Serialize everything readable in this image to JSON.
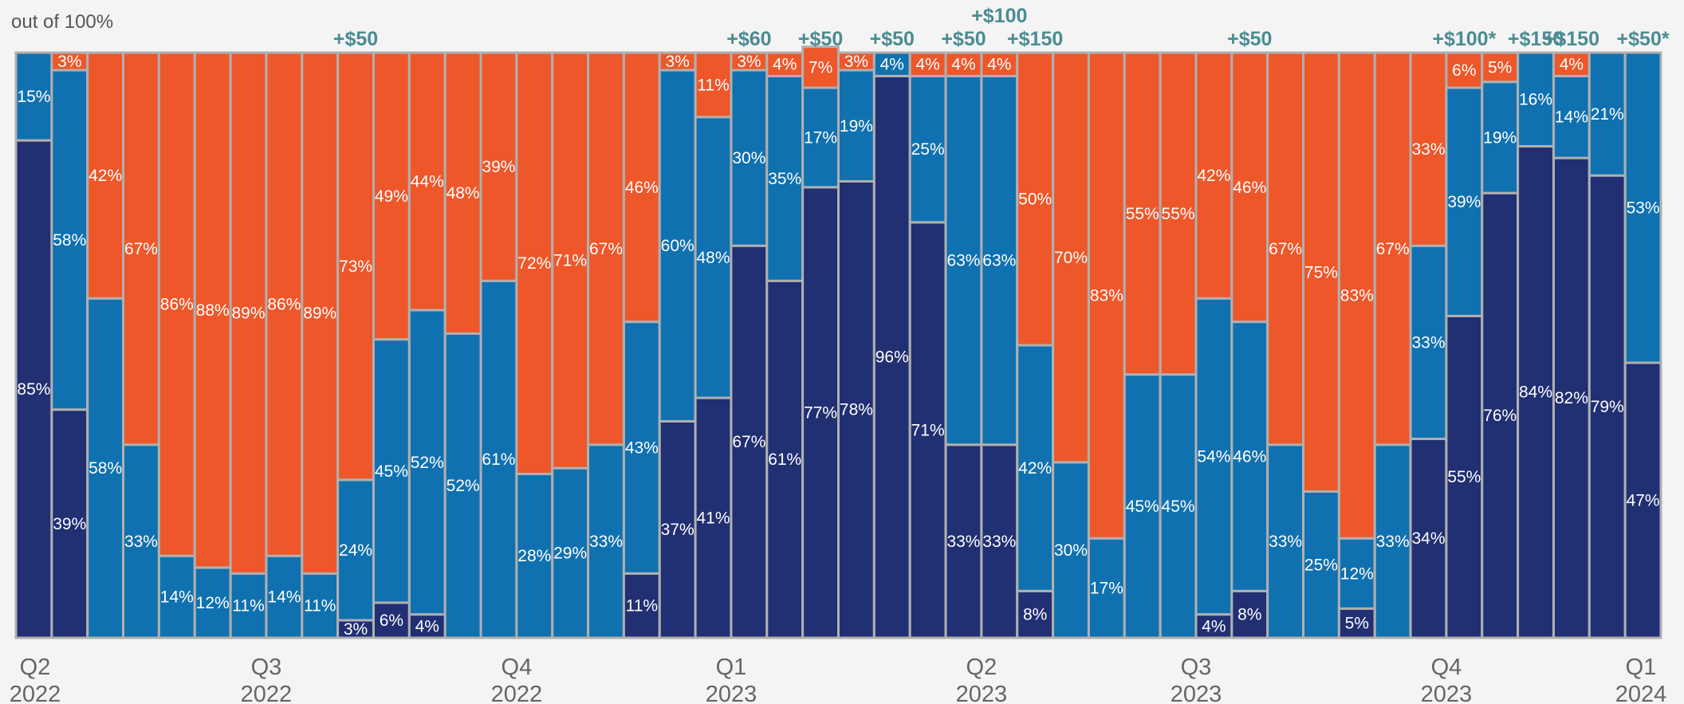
{
  "unit_label": "out of 100%",
  "colors": {
    "dark": "#212f73",
    "mid": "#1071b0",
    "orange": "#ee572a",
    "separator": "#b0b0b0",
    "annotation": "#4a8c93",
    "tick": "#666666"
  },
  "chart_data": {
    "type": "bar",
    "stacked": true,
    "ylim": [
      0,
      100
    ],
    "xlabel": "",
    "ylabel": "",
    "grid": false,
    "legend": "none",
    "x_ticks": [
      {
        "at": 0,
        "quarter": "Q2",
        "year": "2022"
      },
      {
        "at": 6.5,
        "quarter": "Q3",
        "year": "2022"
      },
      {
        "at": 13.5,
        "quarter": "Q4",
        "year": "2022"
      },
      {
        "at": 19.5,
        "quarter": "Q1",
        "year": "2023"
      },
      {
        "at": 26.5,
        "quarter": "Q2",
        "year": "2023"
      },
      {
        "at": 32.5,
        "quarter": "Q3",
        "year": "2023"
      },
      {
        "at": 39.5,
        "quarter": "Q4",
        "year": "2023"
      },
      {
        "at": 46,
        "quarter": "Q1",
        "year": "2024"
      }
    ],
    "series": [
      {
        "key": "dark",
        "values": [
          85,
          39,
          0,
          0,
          0,
          0,
          0,
          0,
          0,
          3,
          6,
          4,
          0,
          0,
          0,
          0,
          0,
          11,
          37,
          41,
          67,
          61,
          77,
          78,
          96,
          71,
          33,
          33,
          8,
          0,
          0,
          0,
          0,
          4,
          8,
          0,
          0,
          5,
          0,
          34,
          55,
          76,
          84,
          82,
          79,
          47
        ]
      },
      {
        "key": "mid",
        "values": [
          15,
          58,
          58,
          33,
          14,
          12,
          11,
          14,
          11,
          24,
          45,
          52,
          52,
          61,
          28,
          29,
          33,
          43,
          60,
          48,
          30,
          35,
          17,
          19,
          4,
          25,
          63,
          63,
          42,
          30,
          17,
          45,
          45,
          54,
          46,
          33,
          25,
          12,
          33,
          33,
          39,
          19,
          16,
          14,
          21,
          53
        ]
      },
      {
        "key": "orange",
        "values": [
          0,
          3,
          42,
          67,
          86,
          88,
          89,
          86,
          89,
          73,
          49,
          44,
          48,
          39,
          72,
          71,
          67,
          46,
          3,
          11,
          3,
          4,
          7,
          3,
          0,
          4,
          4,
          4,
          50,
          70,
          83,
          55,
          55,
          42,
          46,
          67,
          75,
          83,
          67,
          33,
          6,
          5,
          0,
          4,
          0,
          0
        ]
      }
    ],
    "annotations": [
      {
        "bar": 9,
        "text": "+$50",
        "row": 0
      },
      {
        "bar": 20,
        "text": "+$60",
        "row": 0
      },
      {
        "bar": 22,
        "text": "+$50",
        "row": 0
      },
      {
        "bar": 24,
        "text": "+$50",
        "row": 0
      },
      {
        "bar": 26,
        "text": "+$50",
        "row": 0
      },
      {
        "bar": 27,
        "text": "+$100",
        "row": 1
      },
      {
        "bar": 28,
        "text": "+$150",
        "row": 0
      },
      {
        "bar": 34,
        "text": "+$50",
        "row": 0
      },
      {
        "bar": 40,
        "text": "+$100*",
        "row": 0
      },
      {
        "bar": 42,
        "text": "+$150",
        "row": 0
      },
      {
        "bar": 43,
        "text": "+$150",
        "row": 0
      },
      {
        "bar": 45,
        "text": "+$50*",
        "row": 0
      }
    ]
  }
}
